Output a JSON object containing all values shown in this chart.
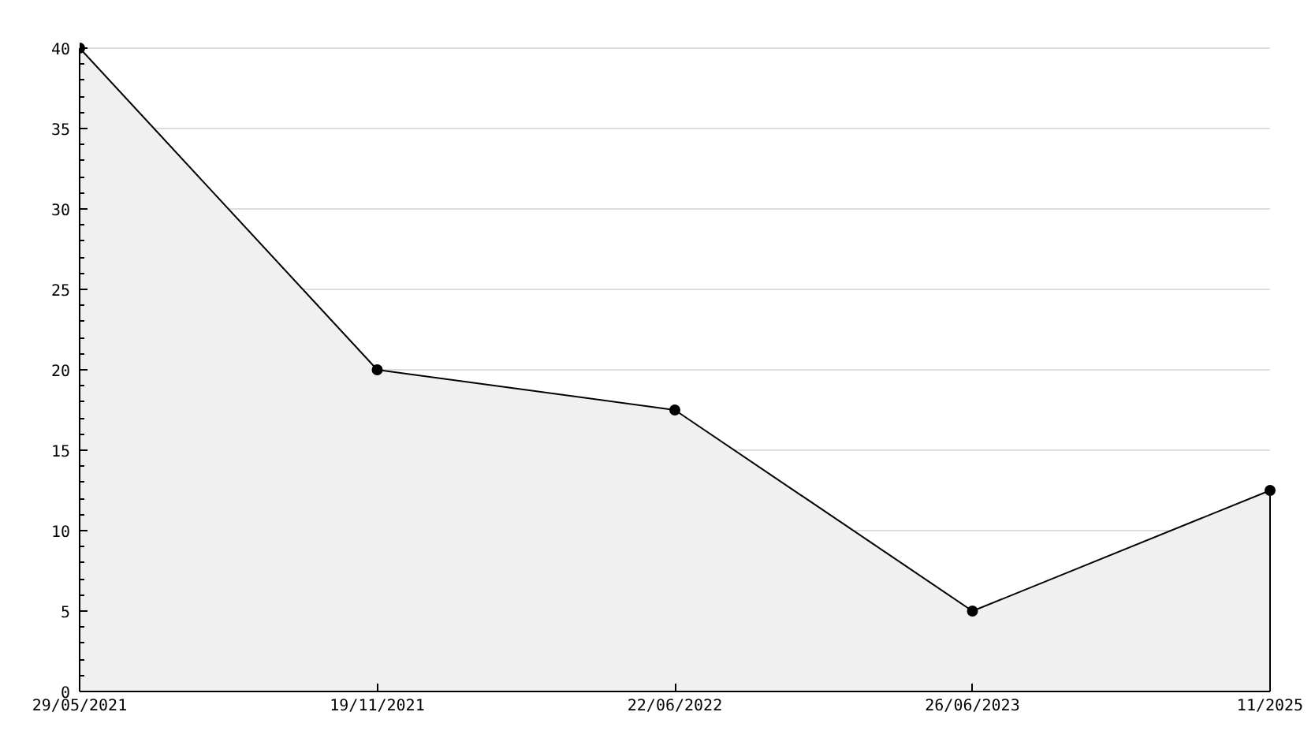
{
  "chart_data": {
    "type": "area",
    "categories": [
      "29/05/2021",
      "19/11/2021",
      "22/06/2022",
      "26/06/2023",
      "11/2025"
    ],
    "series": [
      {
        "color": "#000000",
        "values": [
          40,
          20,
          17.5,
          5,
          12.5
        ]
      }
    ],
    "ylim": [
      0,
      40
    ],
    "yticks": [
      0,
      5,
      10,
      15,
      20,
      25,
      30,
      35,
      40
    ],
    "grid": "y",
    "marker": "circle"
  }
}
